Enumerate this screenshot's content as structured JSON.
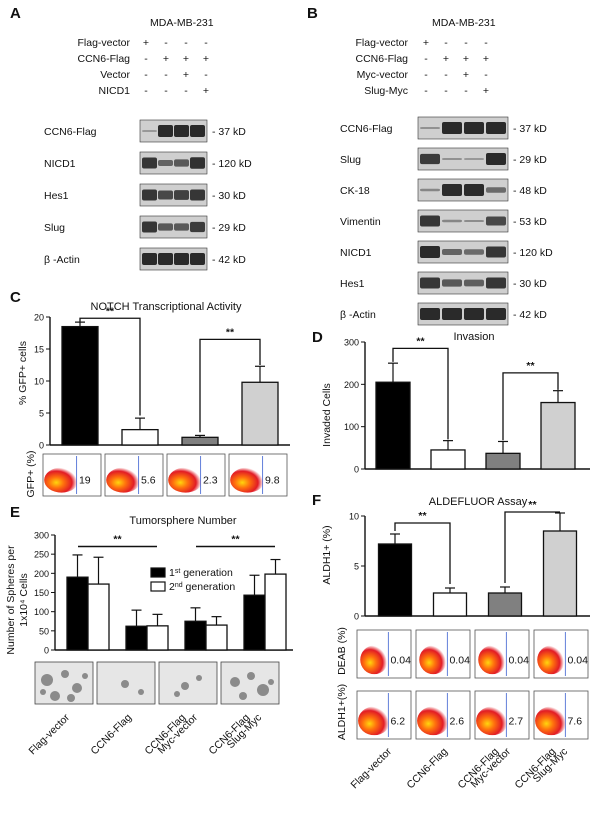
{
  "panels": {
    "A": {
      "letter": "A",
      "cell_line": "MDA-MB-231",
      "rows": [
        {
          "label": "Flag-vector",
          "marks": [
            "+",
            "-",
            "-",
            "-"
          ]
        },
        {
          "label": "CCN6-Flag",
          "marks": [
            "-",
            "+",
            "+",
            "+"
          ]
        },
        {
          "label": "Vector",
          "marks": [
            "-",
            "-",
            "+",
            "-"
          ]
        },
        {
          "label": "NICD1",
          "marks": [
            "-",
            "-",
            "-",
            "+"
          ]
        }
      ],
      "blots": [
        {
          "name": "CCN6-Flag",
          "size": "- 37 kD"
        },
        {
          "name": "NICD1",
          "size": "- 120 kD"
        },
        {
          "name": "Hes1",
          "size": "- 30 kD"
        },
        {
          "name": "Slug",
          "size": "- 29 kD"
        },
        {
          "name": "β -Actin",
          "size": "- 42 kD"
        }
      ]
    },
    "B": {
      "letter": "B",
      "cell_line": "MDA-MB-231",
      "rows": [
        {
          "label": "Flag-vector",
          "marks": [
            "+",
            "-",
            "-",
            "-"
          ]
        },
        {
          "label": "CCN6-Flag",
          "marks": [
            "-",
            "+",
            "+",
            "+"
          ]
        },
        {
          "label": "Myc-vector",
          "marks": [
            "-",
            "-",
            "+",
            "-"
          ]
        },
        {
          "label": "Slug-Myc",
          "marks": [
            "-",
            "-",
            "-",
            "+"
          ]
        }
      ],
      "blots": [
        {
          "name": "CCN6-Flag",
          "size": "- 37 kD"
        },
        {
          "name": "Slug",
          "size": "- 29 kD"
        },
        {
          "name": "CK-18",
          "size": "- 48 kD"
        },
        {
          "name": "Vimentin",
          "size": "- 53 kD"
        },
        {
          "name": "NICD1",
          "size": "- 120 kD"
        },
        {
          "name": "Hes1",
          "size": "- 30 kD"
        },
        {
          "name": "β -Actin",
          "size": "- 42 kD"
        }
      ]
    },
    "C": {
      "letter": "C",
      "facs_label": "GFP+ (%)",
      "facs_values": [
        "19",
        "5.6",
        "2.3",
        "9.8"
      ]
    },
    "D": {
      "letter": "D"
    },
    "E": {
      "letter": "E"
    },
    "F": {
      "letter": "F",
      "facs_rows": [
        {
          "label": "DEAB (%)",
          "values": [
            "0.04",
            "0.04",
            "0.04",
            "0.04"
          ]
        },
        {
          "label": "ALDH1+(%)",
          "values": [
            "6.2",
            "2.6",
            "2.7",
            "7.6"
          ]
        }
      ]
    }
  },
  "x_labels": {
    "left": [
      [
        "Flag-vector"
      ],
      [
        "CCN6-Flag"
      ],
      [
        "CCN6-Flag",
        "Myc-vector"
      ],
      [
        "CCN6-Flag",
        "Slug-Myc"
      ]
    ],
    "right": [
      [
        "Flag-vector"
      ],
      [
        "CCN6-Flag"
      ],
      [
        "CCN6-Flag",
        "Myc-vector"
      ],
      [
        "CCN6-Flag",
        "Slug-Myc"
      ]
    ]
  },
  "colors": {
    "bar1": "#000000",
    "bar2": "#ffffff",
    "bar3": "#808080",
    "bar4": "#d0d0d0"
  },
  "chart_data": [
    {
      "id": "C",
      "type": "bar",
      "title": "NOTCH  Transcriptional  Activity",
      "ylabel": "% GFP+ cells",
      "ylim": [
        0,
        20
      ],
      "yticks": [
        0,
        5,
        10,
        15,
        20
      ],
      "values": [
        18.5,
        2.4,
        1.2,
        9.8
      ],
      "errors": [
        0.7,
        1.8,
        0.3,
        2.5
      ],
      "significance": [
        "**",
        "**"
      ]
    },
    {
      "id": "D",
      "type": "bar",
      "title": "Invasion",
      "ylabel": "Invaded  Cells",
      "ylim": [
        0,
        300
      ],
      "yticks": [
        0,
        100,
        200,
        300
      ],
      "values": [
        205,
        45,
        37,
        157
      ],
      "errors": [
        45,
        22,
        28,
        28
      ],
      "significance": [
        "**",
        "**"
      ]
    },
    {
      "id": "E",
      "type": "bar",
      "title": "Tumorsphere  Number",
      "ylabel_lines": [
        "Number of Spheres per",
        "1x10⁴ Cells"
      ],
      "ylim": [
        0,
        300
      ],
      "yticks": [
        0,
        50,
        100,
        150,
        200,
        250,
        300
      ],
      "categories": [
        "Flag-vector",
        "CCN6-Flag",
        "CCN6-Flag Myc-vector",
        "CCN6-Flag Slug-Myc"
      ],
      "series": [
        {
          "name": "1st generation",
          "name_base": "1",
          "name_sup": "st",
          "name_rest": " generation",
          "values": [
            190,
            62,
            75,
            143
          ],
          "errors": [
            58,
            42,
            35,
            52
          ]
        },
        {
          "name": "2nd generation",
          "name_base": "2",
          "name_sup": "nd",
          "name_rest": " generation",
          "values": [
            172,
            63,
            65,
            198
          ],
          "errors": [
            70,
            30,
            22,
            38
          ]
        }
      ],
      "significance": [
        "**",
        "**"
      ]
    },
    {
      "id": "F",
      "type": "bar",
      "title": "ALDEFLUOR  Assay",
      "ylabel": "ALDH1+ (%)",
      "ylim": [
        0,
        10
      ],
      "yticks": [
        0,
        5,
        10
      ],
      "values": [
        7.2,
        2.3,
        2.3,
        8.5
      ],
      "errors": [
        1.0,
        0.5,
        0.6,
        1.8
      ],
      "significance": [
        "**",
        "**"
      ]
    }
  ]
}
